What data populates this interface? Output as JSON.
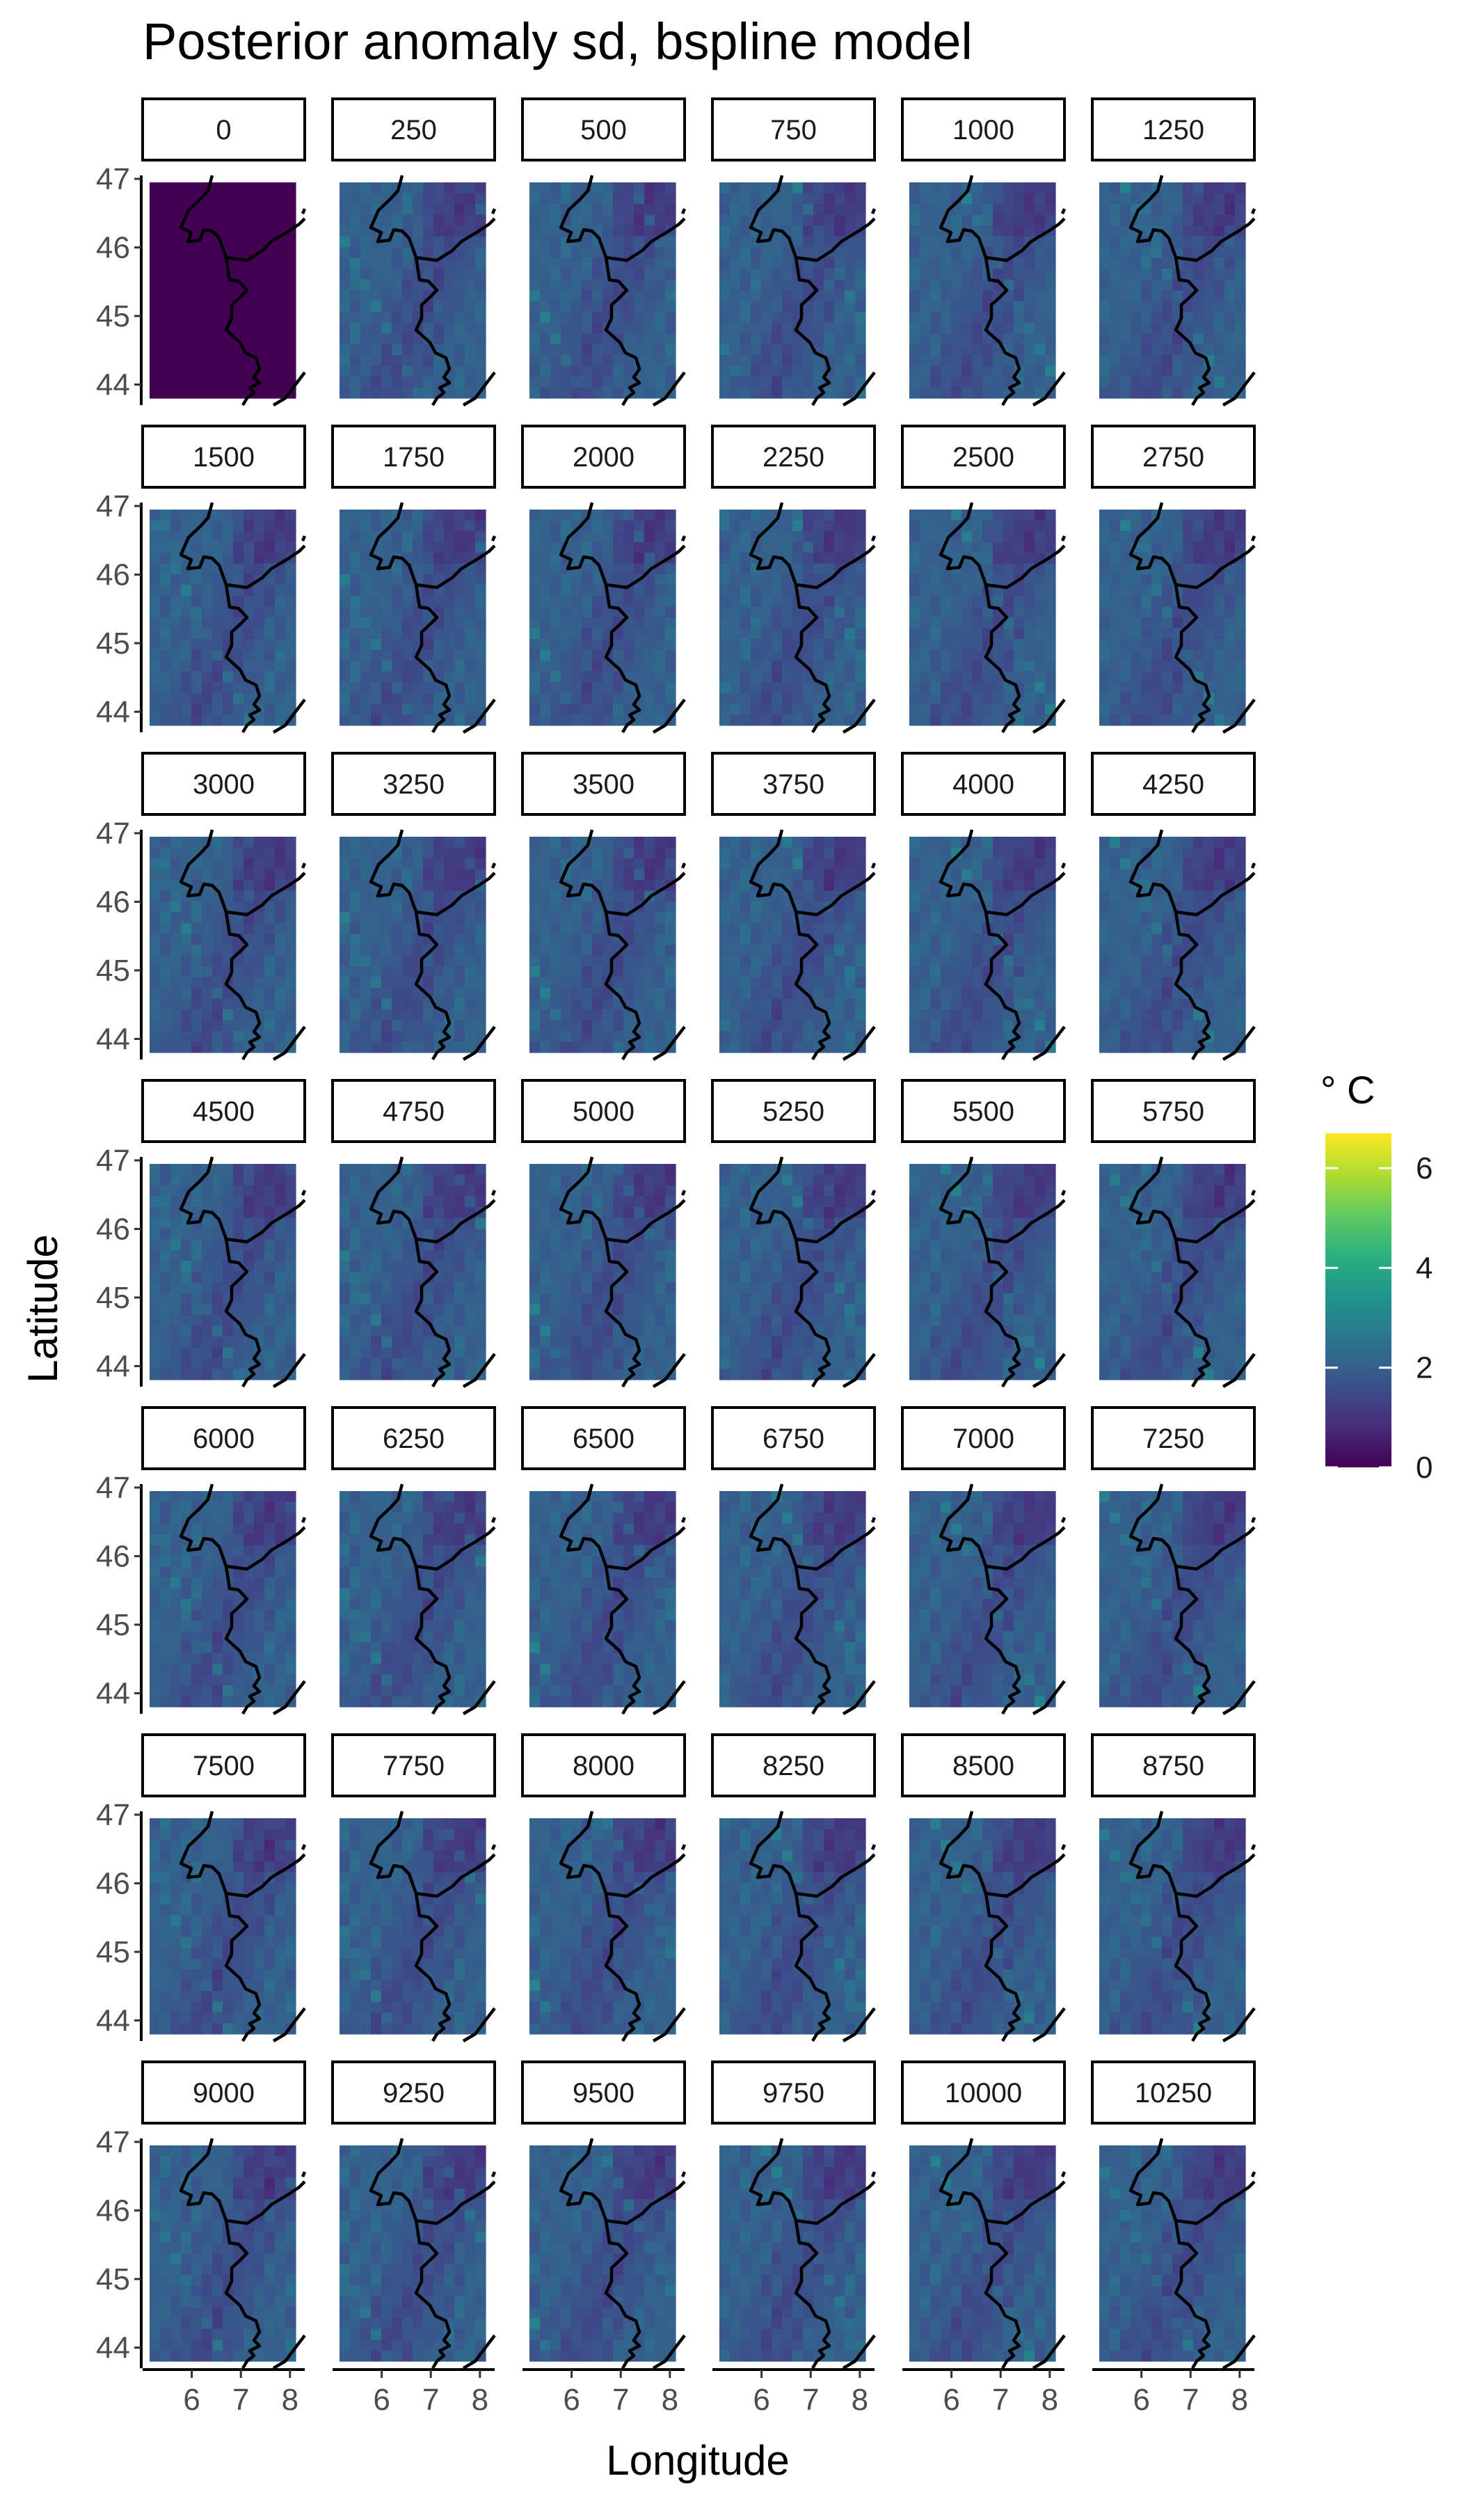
{
  "chart_data": {
    "type": "heatmap",
    "title": "Posterior anomaly sd, bspline model",
    "xlabel": "Longitude",
    "ylabel": "Latitude",
    "facet_labels": [
      "0",
      "250",
      "500",
      "750",
      "1000",
      "1250",
      "1500",
      "1750",
      "2000",
      "2250",
      "2500",
      "2750",
      "3000",
      "3250",
      "3500",
      "3750",
      "4000",
      "4250",
      "4500",
      "4750",
      "5000",
      "5250",
      "5500",
      "5750",
      "6000",
      "6250",
      "6500",
      "6750",
      "7000",
      "7250",
      "7500",
      "7750",
      "8000",
      "8250",
      "8500",
      "8750",
      "9000",
      "9250",
      "9500",
      "9750",
      "10000",
      "10250"
    ],
    "facet_cols": 6,
    "x_ticks": [
      "6",
      "7",
      "8"
    ],
    "y_ticks": [
      "44",
      "45",
      "46",
      "47"
    ],
    "xlim": [
      5.0,
      8.3
    ],
    "ylim": [
      43.7,
      47.05
    ],
    "legend": {
      "title": "° C",
      "ticks": [
        "0",
        "2",
        "4",
        "6"
      ],
      "range": [
        0,
        6.7
      ],
      "position": "right"
    },
    "colors": {
      "viridis": [
        "#440154",
        "#472d7b",
        "#3b528b",
        "#2c728e",
        "#21918c",
        "#28ae80",
        "#5ec962",
        "#addc30",
        "#fde725"
      ],
      "border": "#000000",
      "panel_fill_zero": "#440154"
    },
    "grid": false
  }
}
